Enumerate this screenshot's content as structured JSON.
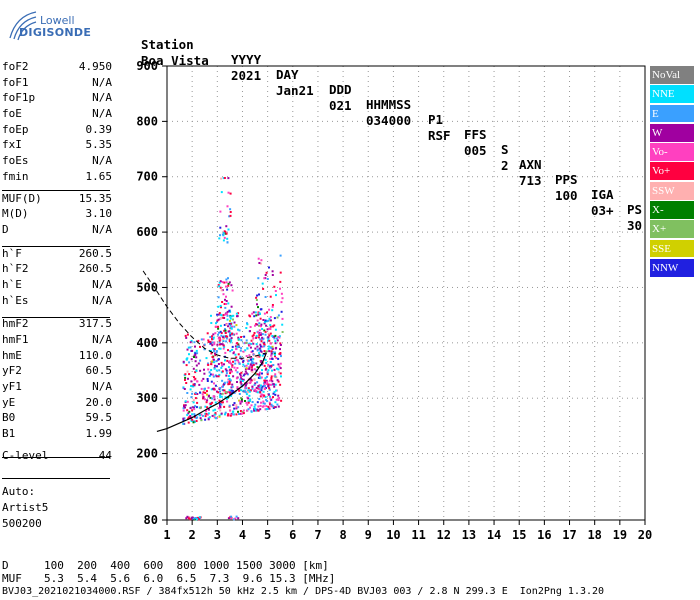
{
  "logo": {
    "line1": "Lowell",
    "line2": "DIGISONDE"
  },
  "header": {
    "row1": [
      "Station",
      "YYYY",
      "DAY",
      "DDD",
      "HHMMSS",
      "P1",
      "FFS",
      "S",
      "AXN",
      "PPS",
      "IGA",
      "PS"
    ],
    "row2": [
      "Boa Vista",
      "2021",
      "Jan21",
      "021",
      "034000",
      "RSF",
      "005",
      "2",
      "713",
      "100",
      "03+",
      "30"
    ]
  },
  "params": [
    {
      "label": "foF2",
      "value": "4.950"
    },
    {
      "label": "foF1",
      "value": "N/A"
    },
    {
      "label": "foF1p",
      "value": "N/A"
    },
    {
      "label": "foE",
      "value": "N/A"
    },
    {
      "label": "foEp",
      "value": "0.39"
    },
    {
      "label": "fxI",
      "value": "5.35"
    },
    {
      "label": "foEs",
      "value": "N/A"
    },
    {
      "label": "fmin",
      "value": "1.65"
    },
    {
      "label": "MUF(D)",
      "value": "15.35"
    },
    {
      "label": "M(D)",
      "value": "3.10"
    },
    {
      "label": "D",
      "value": "N/A"
    },
    {
      "label": "h`F",
      "value": "260.5"
    },
    {
      "label": "h`F2",
      "value": "260.5"
    },
    {
      "label": "h`E",
      "value": "N/A"
    },
    {
      "label": "h`Es",
      "value": "N/A"
    },
    {
      "label": "hmF2",
      "value": "317.5"
    },
    {
      "label": "hmF1",
      "value": "N/A"
    },
    {
      "label": "hmE",
      "value": "110.0"
    },
    {
      "label": "yF2",
      "value": "60.5"
    },
    {
      "label": "yF1",
      "value": "N/A"
    },
    {
      "label": "yE",
      "value": "20.0"
    },
    {
      "label": "B0",
      "value": "59.5"
    },
    {
      "label": "B1",
      "value": "1.99"
    },
    {
      "label": "C-level",
      "value": "44"
    }
  ],
  "auto": {
    "line1": "Auto:",
    "line2": "Artist5",
    "line3": "500200"
  },
  "legend": [
    {
      "label": "NoVal",
      "color": "#808080"
    },
    {
      "label": "NNE",
      "color": "#00e0ff"
    },
    {
      "label": "E",
      "color": "#3aa0ff"
    },
    {
      "label": "W",
      "color": "#a000a0"
    },
    {
      "label": "Vo-",
      "color": "#ff40c0"
    },
    {
      "label": "Vo+",
      "color": "#ff0040"
    },
    {
      "label": "SSW",
      "color": "#ffb0b0"
    },
    {
      "label": "X-",
      "color": "#008000"
    },
    {
      "label": "X+",
      "color": "#80c060"
    },
    {
      "label": "SSE",
      "color": "#d0d000"
    },
    {
      "label": "NNW",
      "color": "#2020e0"
    }
  ],
  "bottom": {
    "row1_label": "D",
    "row1_values": "100  200  400  600  800 1000 1500 3000 [km]",
    "row2_label": "MUF",
    "row2_values": "5.3  5.4  5.6  6.0  6.5  7.3  9.6 15.3 [MHz]",
    "footer": "BVJ03_2021021034000.RSF / 384fx512h 50 kHz 2.5 km / DPS-4D BVJ03 003 / 2.8 N 299.3 E  Ion2Png 1.3.20"
  },
  "chart_data": {
    "type": "scatter",
    "xlim": [
      1,
      20
    ],
    "ylim": [
      80,
      900
    ],
    "xticks": [
      1,
      2,
      3,
      4,
      5,
      6,
      7,
      8,
      9,
      10,
      11,
      12,
      13,
      14,
      15,
      16,
      17,
      18,
      19,
      20
    ],
    "yticks": [
      80,
      200,
      300,
      400,
      500,
      600,
      700,
      800,
      900
    ],
    "profile": {
      "f": [
        0.6,
        1,
        1.5,
        2,
        2.5,
        3,
        3.5,
        4,
        4.5,
        4.8,
        4.95
      ],
      "h": [
        240,
        245,
        255,
        265,
        278,
        290,
        305,
        322,
        345,
        365,
        382
      ]
    },
    "dashed_profile": {
      "f": [
        0.05,
        0.5,
        1,
        1.5,
        2,
        2.5,
        3,
        3.5,
        4,
        4.5,
        4.8,
        4.95
      ],
      "h": [
        530,
        500,
        465,
        435,
        410,
        390,
        378,
        372,
        372,
        376,
        380,
        382
      ]
    },
    "clusters": [
      {
        "f0": 1.6,
        "f1": 5.5,
        "h0": 255,
        "h1": 420,
        "n": 700
      },
      {
        "f0": 2.6,
        "f1": 5.2,
        "h0": 300,
        "h1": 460,
        "n": 260
      },
      {
        "f0": 3.0,
        "f1": 3.6,
        "h0": 400,
        "h1": 520,
        "n": 90
      },
      {
        "f0": 4.5,
        "f1": 5.6,
        "h0": 380,
        "h1": 560,
        "n": 90
      },
      {
        "f0": 3.0,
        "f1": 3.5,
        "h0": 580,
        "h1": 700,
        "n": 30
      },
      {
        "f0": 1.7,
        "f1": 2.3,
        "h0": 83,
        "h1": 88,
        "n": 25
      },
      {
        "f0": 3.4,
        "f1": 3.8,
        "h0": 83,
        "h1": 88,
        "n": 10
      }
    ]
  }
}
